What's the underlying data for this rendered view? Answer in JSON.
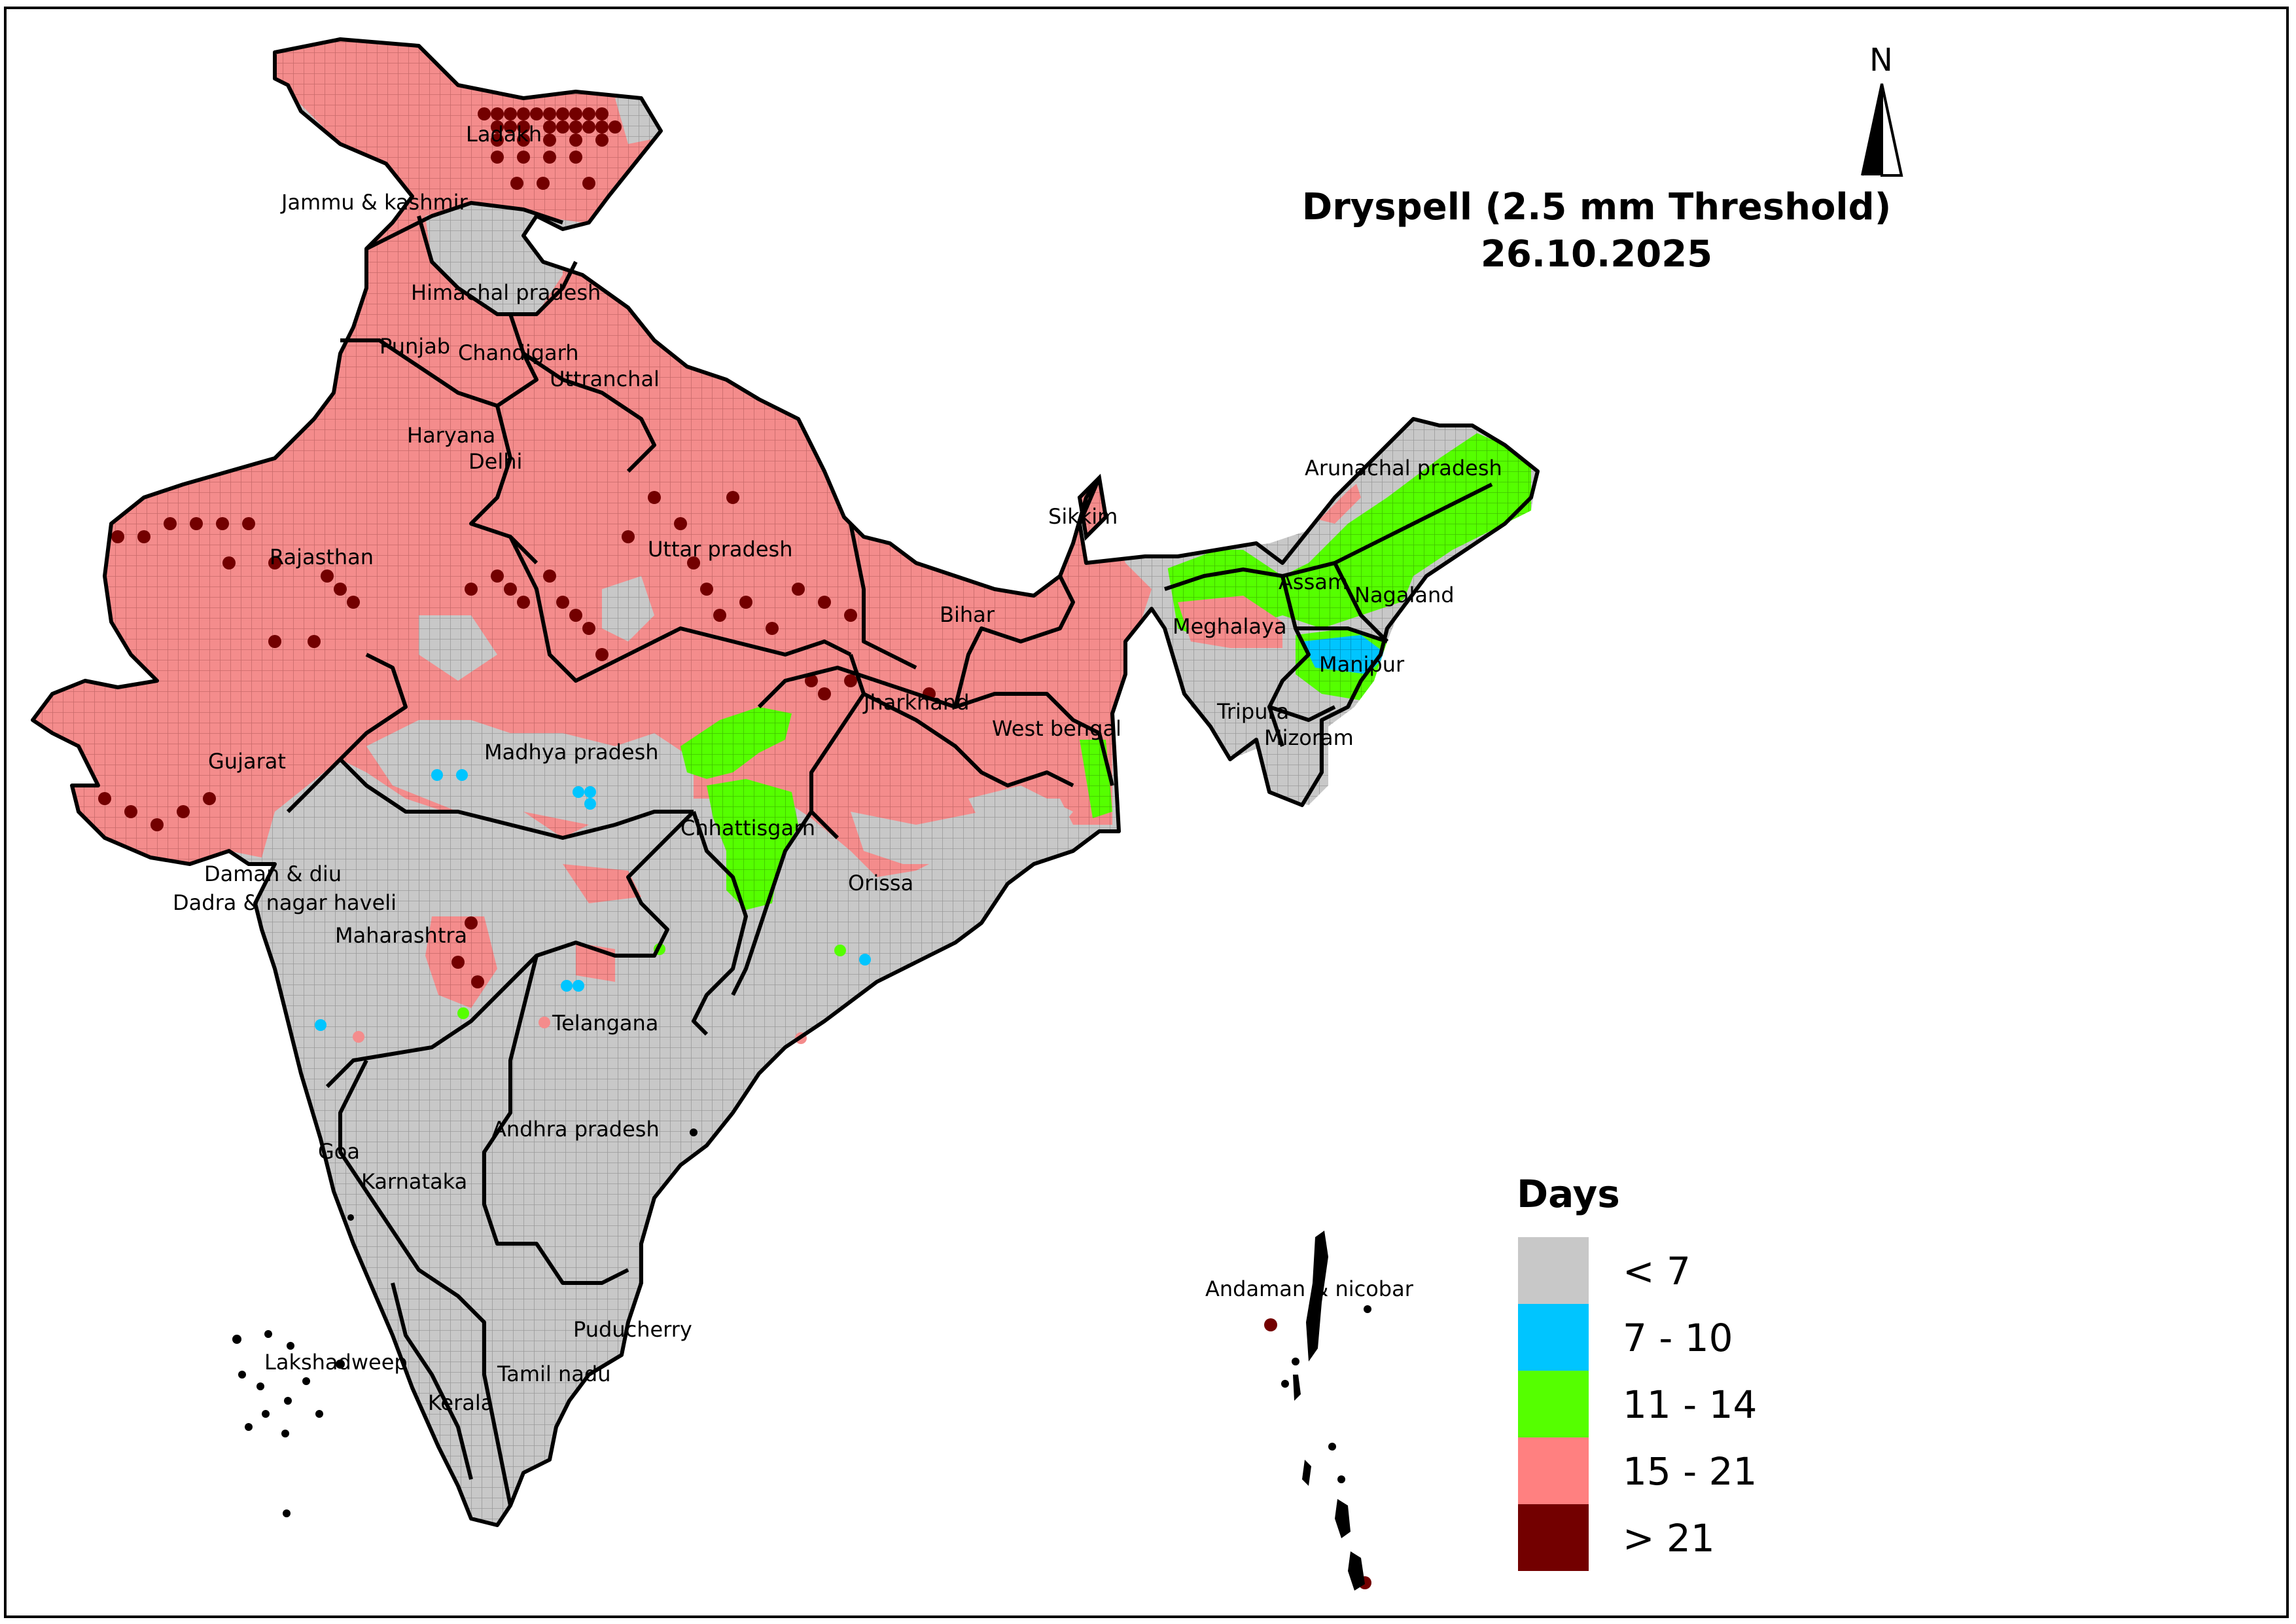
{
  "title": {
    "line1": "Dryspell (2.5 mm Threshold)",
    "line2": "26.10.2025"
  },
  "north_arrow": {
    "letter": "N"
  },
  "legend": {
    "title": "Days",
    "items": [
      {
        "label": "< 7",
        "color": "#c8c8c8"
      },
      {
        "label": "7 - 10",
        "color": "#00c5ff"
      },
      {
        "label": "11 - 14",
        "color": "#55ff00"
      },
      {
        "label": "15 - 21",
        "color": "#ff8080"
      },
      {
        "label": "> 21",
        "color": "#730000"
      }
    ]
  },
  "regions": [
    "Ladakh",
    "Jammu & kashmir",
    "Himachal pradesh",
    "Punjab",
    "Chandigarh",
    "Uttranchal",
    "Haryana",
    "Delhi",
    "Rajasthan",
    "Uttar pradesh",
    "Bihar",
    "Sikkim",
    "Arunachal pradesh",
    "Assam",
    "Nagaland",
    "Meghalaya",
    "Manipur",
    "Tripura",
    "Mizoram",
    "Jharkhand",
    "West bengal",
    "Gujarat",
    "Madhya pradesh",
    "Chhattisgarh",
    "Orissa",
    "Daman & diu",
    "Dadra & nagar haveli",
    "Maharashtra",
    "Telangana",
    "Andhra pradesh",
    "Goa",
    "Karnataka",
    "Andaman & nicobar",
    "Puducherry",
    "Lakshadweep",
    "Tamil nadu",
    "Kerala"
  ]
}
